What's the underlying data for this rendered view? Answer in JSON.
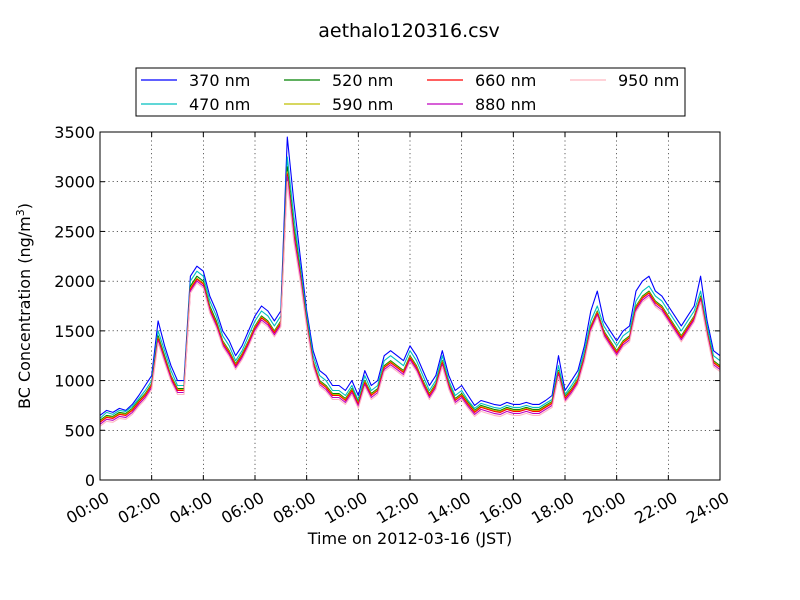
{
  "chart_data": {
    "type": "line",
    "title": "aethalo120316.csv",
    "xlabel": "Time on 2012-03-16 (JST)",
    "ylabel_main": "BC Concentration (ng/m",
    "ylabel_sup": "3",
    "ylabel_end": ")",
    "xlim": [
      0,
      24
    ],
    "ylim": [
      0,
      3500
    ],
    "x_ticks": [
      0,
      2,
      4,
      6,
      8,
      10,
      12,
      14,
      16,
      18,
      20,
      22,
      24
    ],
    "x_tick_labels": [
      "00:00",
      "02:00",
      "04:00",
      "06:00",
      "08:00",
      "10:00",
      "12:00",
      "14:00",
      "16:00",
      "18:00",
      "20:00",
      "22:00",
      "24:00"
    ],
    "y_ticks": [
      0,
      500,
      1000,
      1500,
      2000,
      2500,
      3000,
      3500
    ],
    "y_tick_labels": [
      "0",
      "500",
      "1000",
      "1500",
      "2000",
      "2500",
      "3000",
      "3500"
    ],
    "grid": true,
    "legend_position": "above plot, 4 columns",
    "x": [
      0,
      0.25,
      0.5,
      0.75,
      1,
      1.25,
      1.5,
      1.75,
      2,
      2.25,
      2.5,
      2.75,
      3,
      3.25,
      3.5,
      3.75,
      4,
      4.25,
      4.5,
      4.75,
      5,
      5.25,
      5.5,
      5.75,
      6,
      6.25,
      6.5,
      6.75,
      7,
      7.25,
      7.5,
      7.75,
      8,
      8.25,
      8.5,
      8.75,
      9,
      9.25,
      9.5,
      9.75,
      10,
      10.25,
      10.5,
      10.75,
      11,
      11.25,
      11.5,
      11.75,
      12,
      12.25,
      12.5,
      12.75,
      13,
      13.25,
      13.5,
      13.75,
      14,
      14.25,
      14.5,
      14.75,
      15,
      15.25,
      15.5,
      15.75,
      16,
      16.25,
      16.5,
      16.75,
      17,
      17.25,
      17.5,
      17.75,
      18,
      18.25,
      18.5,
      18.75,
      19,
      19.25,
      19.5,
      19.75,
      20,
      20.25,
      20.5,
      20.75,
      21,
      21.25,
      21.5,
      21.75,
      22,
      22.25,
      22.5,
      22.75,
      23,
      23.25,
      23.5,
      23.75,
      24
    ],
    "series": [
      {
        "name": "370 nm",
        "color": "#0000ff",
        "values": [
          650,
          700,
          680,
          720,
          700,
          760,
          850,
          950,
          1050,
          1600,
          1350,
          1150,
          1000,
          1000,
          2050,
          2150,
          2100,
          1850,
          1700,
          1500,
          1400,
          1250,
          1350,
          1500,
          1650,
          1750,
          1700,
          1600,
          1700,
          3450,
          2800,
          2250,
          1700,
          1300,
          1100,
          1050,
          950,
          950,
          900,
          1000,
          850,
          1100,
          950,
          1000,
          1250,
          1300,
          1250,
          1200,
          1350,
          1250,
          1100,
          950,
          1050,
          1300,
          1050,
          900,
          950,
          850,
          750,
          800,
          780,
          760,
          750,
          780,
          760,
          760,
          780,
          760,
          760,
          800,
          850,
          1250,
          900,
          1000,
          1100,
          1350,
          1700,
          1900,
          1600,
          1500,
          1400,
          1500,
          1550,
          1900,
          2000,
          2050,
          1900,
          1850,
          1750,
          1650,
          1550,
          1650,
          1750,
          2050,
          1600,
          1300,
          1250
        ]
      },
      {
        "name": "470 nm",
        "color": "#00bfbf",
        "values": [
          620,
          680,
          660,
          700,
          690,
          740,
          820,
          900,
          1000,
          1500,
          1300,
          1100,
          950,
          950,
          2000,
          2100,
          2050,
          1800,
          1650,
          1450,
          1350,
          1200,
          1300,
          1450,
          1600,
          1700,
          1650,
          1550,
          1650,
          3250,
          2650,
          2150,
          1650,
          1250,
          1050,
          1000,
          900,
          900,
          850,
          950,
          800,
          1050,
          900,
          950,
          1200,
          1250,
          1200,
          1150,
          1300,
          1200,
          1050,
          900,
          1000,
          1250,
          1000,
          850,
          900,
          800,
          720,
          770,
          750,
          730,
          720,
          750,
          730,
          730,
          750,
          730,
          730,
          770,
          810,
          1150,
          860,
          950,
          1050,
          1300,
          1600,
          1750,
          1550,
          1450,
          1350,
          1450,
          1500,
          1800,
          1900,
          1950,
          1850,
          1800,
          1700,
          1600,
          1500,
          1600,
          1700,
          1900,
          1550,
          1250,
          1200
        ]
      },
      {
        "name": "520 nm",
        "color": "#008000",
        "values": [
          600,
          650,
          640,
          680,
          670,
          720,
          800,
          870,
          970,
          1450,
          1250,
          1050,
          920,
          920,
          1950,
          2050,
          2000,
          1750,
          1600,
          1400,
          1300,
          1170,
          1270,
          1400,
          1550,
          1650,
          1600,
          1500,
          1600,
          3150,
          2550,
          2100,
          1600,
          1200,
          1000,
          950,
          870,
          870,
          820,
          920,
          780,
          1000,
          870,
          920,
          1150,
          1200,
          1150,
          1100,
          1250,
          1150,
          1000,
          870,
          970,
          1200,
          970,
          820,
          870,
          780,
          700,
          750,
          730,
          710,
          700,
          730,
          710,
          710,
          730,
          710,
          710,
          750,
          790,
          1100,
          840,
          920,
          1020,
          1250,
          1550,
          1700,
          1500,
          1400,
          1300,
          1400,
          1450,
          1750,
          1850,
          1900,
          1800,
          1750,
          1650,
          1550,
          1450,
          1550,
          1650,
          1850,
          1500,
          1200,
          1150
        ]
      },
      {
        "name": "590 nm",
        "color": "#bfbf00",
        "values": [
          590,
          640,
          630,
          670,
          660,
          710,
          790,
          860,
          960,
          1430,
          1230,
          1040,
          910,
          910,
          1930,
          2030,
          1980,
          1730,
          1580,
          1390,
          1290,
          1160,
          1260,
          1390,
          1540,
          1640,
          1590,
          1490,
          1590,
          3100,
          2500,
          2080,
          1580,
          1190,
          990,
          940,
          860,
          860,
          810,
          910,
          770,
          990,
          860,
          910,
          1140,
          1190,
          1140,
          1090,
          1240,
          1140,
          990,
          860,
          960,
          1190,
          960,
          810,
          860,
          770,
          690,
          740,
          720,
          700,
          690,
          720,
          700,
          700,
          720,
          700,
          700,
          740,
          780,
          1090,
          830,
          910,
          1010,
          1240,
          1540,
          1690,
          1490,
          1390,
          1290,
          1390,
          1440,
          1740,
          1840,
          1890,
          1790,
          1740,
          1640,
          1540,
          1440,
          1540,
          1640,
          1840,
          1490,
          1190,
          1140
        ]
      },
      {
        "name": "660 nm",
        "color": "#ff0000",
        "values": [
          580,
          630,
          620,
          660,
          650,
          700,
          780,
          850,
          950,
          1420,
          1220,
          1030,
          900,
          900,
          1920,
          2020,
          1970,
          1720,
          1570,
          1380,
          1280,
          1150,
          1250,
          1380,
          1530,
          1630,
          1580,
          1480,
          1580,
          3080,
          2480,
          2060,
          1570,
          1180,
          980,
          930,
          850,
          850,
          800,
          900,
          760,
          980,
          850,
          900,
          1130,
          1180,
          1130,
          1080,
          1230,
          1130,
          980,
          850,
          950,
          1180,
          950,
          800,
          850,
          760,
          680,
          730,
          710,
          690,
          680,
          710,
          690,
          690,
          710,
          690,
          690,
          730,
          770,
          1080,
          820,
          900,
          1000,
          1230,
          1530,
          1680,
          1480,
          1380,
          1280,
          1380,
          1430,
          1730,
          1830,
          1880,
          1780,
          1730,
          1630,
          1530,
          1430,
          1530,
          1630,
          1830,
          1480,
          1180,
          1130
        ]
      },
      {
        "name": "880 nm",
        "color": "#bf00bf",
        "values": [
          560,
          610,
          600,
          640,
          630,
          680,
          760,
          830,
          930,
          1400,
          1200,
          1010,
          880,
          880,
          1900,
          2000,
          1950,
          1700,
          1550,
          1360,
          1260,
          1130,
          1230,
          1360,
          1510,
          1610,
          1560,
          1460,
          1560,
          3050,
          2450,
          2040,
          1550,
          1160,
          960,
          910,
          830,
          830,
          780,
          880,
          740,
          960,
          830,
          880,
          1110,
          1160,
          1110,
          1060,
          1210,
          1110,
          960,
          830,
          930,
          1160,
          930,
          780,
          830,
          740,
          660,
          710,
          690,
          670,
          660,
          690,
          670,
          670,
          690,
          670,
          670,
          710,
          750,
          1060,
          800,
          880,
          980,
          1210,
          1510,
          1660,
          1460,
          1360,
          1260,
          1360,
          1410,
          1710,
          1810,
          1860,
          1760,
          1710,
          1610,
          1510,
          1410,
          1510,
          1610,
          1810,
          1460,
          1160,
          1110
        ]
      },
      {
        "name": "950 nm",
        "color": "#ffb6c1",
        "values": [
          540,
          590,
          580,
          620,
          610,
          660,
          740,
          810,
          910,
          1380,
          1180,
          990,
          860,
          860,
          1880,
          1980,
          1930,
          1680,
          1530,
          1340,
          1240,
          1110,
          1210,
          1340,
          1490,
          1590,
          1540,
          1440,
          1540,
          3000,
          2400,
          2000,
          1530,
          1140,
          940,
          890,
          810,
          810,
          760,
          860,
          720,
          940,
          810,
          860,
          1090,
          1140,
          1090,
          1040,
          1190,
          1090,
          940,
          810,
          910,
          1140,
          910,
          760,
          810,
          720,
          640,
          690,
          670,
          650,
          640,
          670,
          650,
          650,
          670,
          650,
          650,
          690,
          730,
          1040,
          780,
          860,
          960,
          1190,
          1490,
          1640,
          1440,
          1340,
          1240,
          1340,
          1390,
          1690,
          1790,
          1840,
          1740,
          1690,
          1590,
          1490,
          1390,
          1490,
          1590,
          1790,
          1440,
          1140,
          1090
        ]
      }
    ]
  }
}
